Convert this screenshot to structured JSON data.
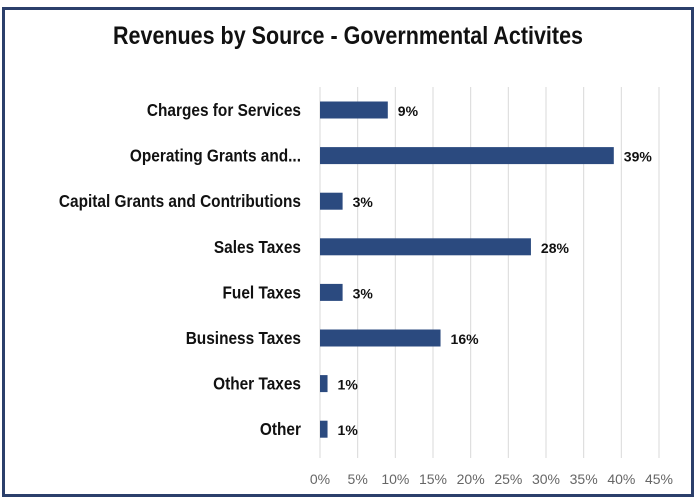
{
  "chart_data": {
    "type": "bar",
    "orientation": "horizontal",
    "title": "Revenues by Source - Governmental Activites",
    "categories": [
      "Charges for Services",
      "Operating Grants and...",
      "Capital Grants and Contributions",
      "Sales Taxes",
      "Fuel Taxes",
      "Business Taxes",
      "Other Taxes",
      "Other"
    ],
    "values": [
      9,
      39,
      3,
      28,
      3,
      16,
      1,
      1
    ],
    "data_labels": [
      "9%",
      "39%",
      "3%",
      "28%",
      "3%",
      "16%",
      "1%",
      "1%"
    ],
    "xlim": [
      0,
      45
    ],
    "xticks": [
      0,
      5,
      10,
      15,
      20,
      25,
      30,
      35,
      40,
      45
    ],
    "xtick_labels": [
      "0%",
      "5%",
      "10%",
      "15%",
      "20%",
      "25%",
      "30%",
      "35%",
      "40%",
      "45%"
    ],
    "xlabel": "",
    "ylabel": "",
    "grid": true,
    "legend": "none",
    "bar_color": "#2b4a7f",
    "grid_color": "#d9d9d9",
    "frame_color": "#2b3f6b"
  }
}
